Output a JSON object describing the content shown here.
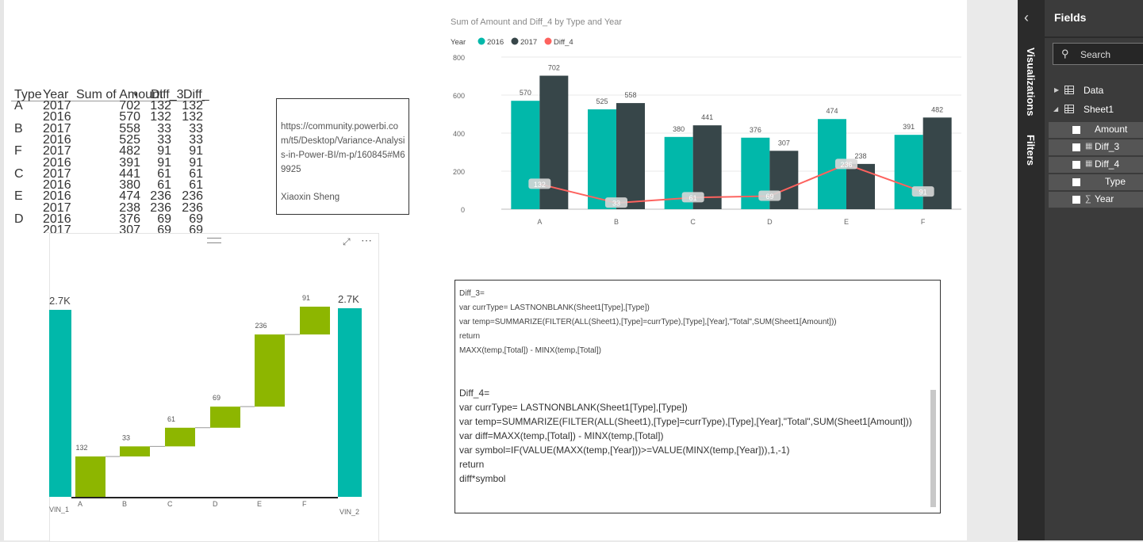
{
  "table": {
    "headers": {
      "type": "Type",
      "year": "Year",
      "amount": "Sum of Amount",
      "diff3": "Diff_3",
      "diff4": "Diff_4"
    },
    "rows": [
      {
        "type": "A",
        "year": "2017",
        "amount": "702",
        "diff3": "132",
        "diff4": "132"
      },
      {
        "type": "",
        "year": "2016",
        "amount": "570",
        "diff3": "132",
        "diff4": "132"
      },
      {
        "type": "B",
        "year": "2017",
        "amount": "558",
        "diff3": "33",
        "diff4": "33"
      },
      {
        "type": "",
        "year": "2016",
        "amount": "525",
        "diff3": "33",
        "diff4": "33"
      },
      {
        "type": "F",
        "year": "2017",
        "amount": "482",
        "diff3": "91",
        "diff4": "91"
      },
      {
        "type": "",
        "year": "2016",
        "amount": "391",
        "diff3": "91",
        "diff4": "91"
      },
      {
        "type": "C",
        "year": "2017",
        "amount": "441",
        "diff3": "61",
        "diff4": "61"
      },
      {
        "type": "",
        "year": "2016",
        "amount": "380",
        "diff3": "61",
        "diff4": "61"
      },
      {
        "type": "E",
        "year": "2016",
        "amount": "474",
        "diff3": "236",
        "diff4": "236"
      },
      {
        "type": "",
        "year": "2017",
        "amount": "238",
        "diff3": "236",
        "diff4": "236"
      },
      {
        "type": "D",
        "year": "2016",
        "amount": "376",
        "diff3": "69",
        "diff4": "69"
      },
      {
        "type": "",
        "year": "2017",
        "amount": "307",
        "diff3": "69",
        "diff4": "69"
      }
    ]
  },
  "textbox": {
    "link": "https://community.powerbi.com/t5/Desktop/Variance-Analysis-in-Power-BI/m-p/160845#M69925",
    "author": "Xiaoxin Sheng"
  },
  "chart_data": [
    {
      "type": "bar",
      "title": "Sum of Amount and Diff_4 by Type and Year",
      "legend_title": "Year",
      "legend_position": "top-left",
      "categories": [
        "A",
        "B",
        "C",
        "D",
        "E",
        "F"
      ],
      "series": [
        {
          "name": "2016",
          "type": "bar",
          "color": "#01b8aa",
          "values": [
            570,
            525,
            380,
            376,
            474,
            391
          ]
        },
        {
          "name": "2017",
          "type": "bar",
          "color": "#374649",
          "values": [
            702,
            558,
            441,
            307,
            238,
            482
          ]
        },
        {
          "name": "Diff_4",
          "type": "line",
          "color": "#fd625e",
          "values": [
            132,
            33,
            61,
            69,
            236,
            91
          ]
        }
      ],
      "ylim": [
        0,
        800
      ],
      "yticks": [
        0,
        200,
        400,
        600,
        800
      ],
      "grid": true
    },
    {
      "type": "waterfall",
      "categories": [
        "VIN_1",
        "A",
        "B",
        "C",
        "D",
        "E",
        "F",
        "VIN_2"
      ],
      "start_label": "2.7K",
      "end_label": "2.7K",
      "steps": [
        132,
        33,
        61,
        69,
        236,
        91
      ],
      "total_color": "#01b8aa",
      "step_color": "#8db600"
    }
  ],
  "waterfall_toolbar": {
    "focus_icon": "⤢",
    "more_icon": "⋯"
  },
  "code_small": "Diff_3=\nvar currType= LASTNONBLANK(Sheet1[Type],[Type])\nvar temp=SUMMARIZE(FILTER(ALL(Sheet1),[Type]=currType),[Type],[Year],\"Total\",SUM(Sheet1[Amount]))\nreturn\nMAXX(temp,[Total]) - MINX(temp,[Total])",
  "code_big": "Diff_4=\nvar currType= LASTNONBLANK(Sheet1[Type],[Type])\nvar temp=SUMMARIZE(FILTER(ALL(Sheet1),[Type]=currType),[Type],[Year],\"Total\",SUM(Sheet1[Amount]))\nvar diff=MAXX(temp,[Total]) - MINX(temp,[Total])\nvar symbol=IF(VALUE(MAXX(temp,[Year]))>=VALUE(MINX(temp,[Year])),1,-1)\nreturn\ndiff*symbol",
  "panes": {
    "visualizations": "Visualizations",
    "filters": "Filters",
    "fields_title": "Fields",
    "search_placeholder": "Search",
    "tables": [
      {
        "name": "Data"
      },
      {
        "name": "Sheet1",
        "fields": [
          {
            "name": "Amount",
            "kind": "plain"
          },
          {
            "name": "Diff_3",
            "kind": "calc"
          },
          {
            "name": "Diff_4",
            "kind": "calc"
          },
          {
            "name": "Type",
            "kind": "plain"
          },
          {
            "name": "Year",
            "kind": "sum"
          }
        ]
      }
    ]
  }
}
